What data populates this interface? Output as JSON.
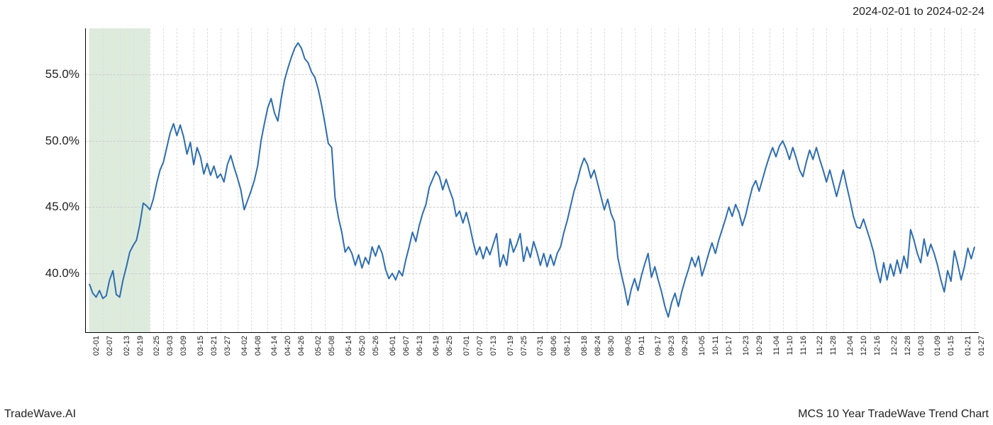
{
  "header": {
    "date_range": "2024-02-01 to 2024-02-24"
  },
  "footer": {
    "left": "TradeWave.AI",
    "right": "MCS 10 Year TradeWave Trend Chart"
  },
  "chart": {
    "type": "line",
    "background_color": "#ffffff",
    "line_color": "#2d6db0",
    "line_width": 2,
    "grid_color": "#d8d8d8",
    "axis_color": "#000000",
    "highlight": {
      "color": "rgba(180,210,180,0.45)",
      "start_index": 0,
      "end_index": 5
    },
    "y_axis": {
      "min": 35.5,
      "max": 58.5,
      "ticks": [
        40.0,
        45.0,
        50.0,
        55.0
      ],
      "tick_labels": [
        "40.0%",
        "45.0%",
        "50.0%",
        "55.0%"
      ],
      "label_fontsize": 17
    },
    "x_axis": {
      "tick_every": 3,
      "label_fontsize": 11,
      "labels": [
        "02-01",
        "02-07",
        "02-13",
        "02-19",
        "02-25",
        "03-03",
        "03-09",
        "03-15",
        "03-21",
        "03-27",
        "04-02",
        "04-08",
        "04-14",
        "04-20",
        "04-26",
        "05-02",
        "05-08",
        "05-14",
        "05-20",
        "05-26",
        "06-01",
        "06-07",
        "06-13",
        "06-19",
        "06-25",
        "07-01",
        "07-07",
        "07-13",
        "07-19",
        "07-25",
        "07-31",
        "08-06",
        "08-12",
        "08-18",
        "08-24",
        "08-30",
        "09-05",
        "09-11",
        "09-17",
        "09-23",
        "09-29",
        "10-05",
        "10-11",
        "10-17",
        "10-23",
        "10-29",
        "11-04",
        "11-10",
        "11-16",
        "11-22",
        "11-28",
        "12-04",
        "12-10",
        "12-16",
        "12-22",
        "12-28",
        "01-03",
        "01-09",
        "01-15",
        "01-21",
        "01-27"
      ]
    },
    "series": {
      "values": [
        39.2,
        38.5,
        38.2,
        38.7,
        38.1,
        38.3,
        39.5,
        40.2,
        38.4,
        38.2,
        39.5,
        40.5,
        41.6,
        42.1,
        42.5,
        43.7,
        45.3,
        45.1,
        44.8,
        45.6,
        46.8,
        47.8,
        48.4,
        49.5,
        50.6,
        51.3,
        50.4,
        51.2,
        50.3,
        49.0,
        49.9,
        48.2,
        49.5,
        48.8,
        47.5,
        48.3,
        47.4,
        48.1,
        47.2,
        47.5,
        46.9,
        48.2,
        48.9,
        48.0,
        47.2,
        46.3,
        44.8,
        45.5,
        46.2,
        47.0,
        48.1,
        50.0,
        51.3,
        52.5,
        53.2,
        52.1,
        51.5,
        53.2,
        54.6,
        55.5,
        56.3,
        57.0,
        57.4,
        57.0,
        56.2,
        55.9,
        55.2,
        54.8,
        53.9,
        52.7,
        51.3,
        49.8,
        49.5,
        45.7,
        44.2,
        43.1,
        41.6,
        42.0,
        41.5,
        40.6,
        41.4,
        40.4,
        41.2,
        40.7,
        42.0,
        41.3,
        42.1,
        41.5,
        40.3,
        39.6,
        40.0,
        39.5,
        40.2,
        39.8,
        41.0,
        42.0,
        43.1,
        42.4,
        43.6,
        44.5,
        45.2,
        46.5,
        47.1,
        47.7,
        47.3,
        46.3,
        47.1,
        46.3,
        45.6,
        44.3,
        44.7,
        43.8,
        44.6,
        43.6,
        42.4,
        41.4,
        42.0,
        41.1,
        42.0,
        41.4,
        42.2,
        43.0,
        40.5,
        41.4,
        40.6,
        42.6,
        41.6,
        42.2,
        43.0,
        40.9,
        42.0,
        41.2,
        42.4,
        41.6,
        40.6,
        41.5,
        40.5,
        41.4,
        40.6,
        41.5,
        42.0,
        43.1,
        44.0,
        45.1,
        46.2,
        47.0,
        48.0,
        48.7,
        48.2,
        47.2,
        47.8,
        46.8,
        45.8,
        44.8,
        45.6,
        44.5,
        43.9,
        41.2,
        40.0,
        38.9,
        37.6,
        38.8,
        39.6,
        38.7,
        39.8,
        40.7,
        41.5,
        39.7,
        40.5,
        39.5,
        38.6,
        37.5,
        36.7,
        37.8,
        38.5,
        37.5,
        38.6,
        39.5,
        40.3,
        41.2,
        40.5,
        41.3,
        39.8,
        40.6,
        41.5,
        42.3,
        41.5,
        42.5,
        43.3,
        44.1,
        45.0,
        44.3,
        45.2,
        44.6,
        43.6,
        44.4,
        45.5,
        46.5,
        47.0,
        46.2,
        47.1,
        48.0,
        48.8,
        49.5,
        48.8,
        49.6,
        50.0,
        49.4,
        48.6,
        49.5,
        48.7,
        47.8,
        47.3,
        48.4,
        49.3,
        48.6,
        49.5,
        48.6,
        47.8,
        46.9,
        47.8,
        46.8,
        45.8,
        46.8,
        47.8,
        46.6,
        45.5,
        44.3,
        43.5,
        43.4,
        44.1,
        43.3,
        42.5,
        41.6,
        40.3,
        39.3,
        40.8,
        39.5,
        40.7,
        39.8,
        41.0,
        40.0,
        41.3,
        40.4,
        43.3,
        42.5,
        41.5,
        40.8,
        42.6,
        41.3,
        42.2,
        41.5,
        40.6,
        39.5,
        38.6,
        40.2,
        39.4,
        41.7,
        40.7,
        39.5,
        40.5,
        41.9,
        41.1,
        42.0
      ]
    }
  }
}
